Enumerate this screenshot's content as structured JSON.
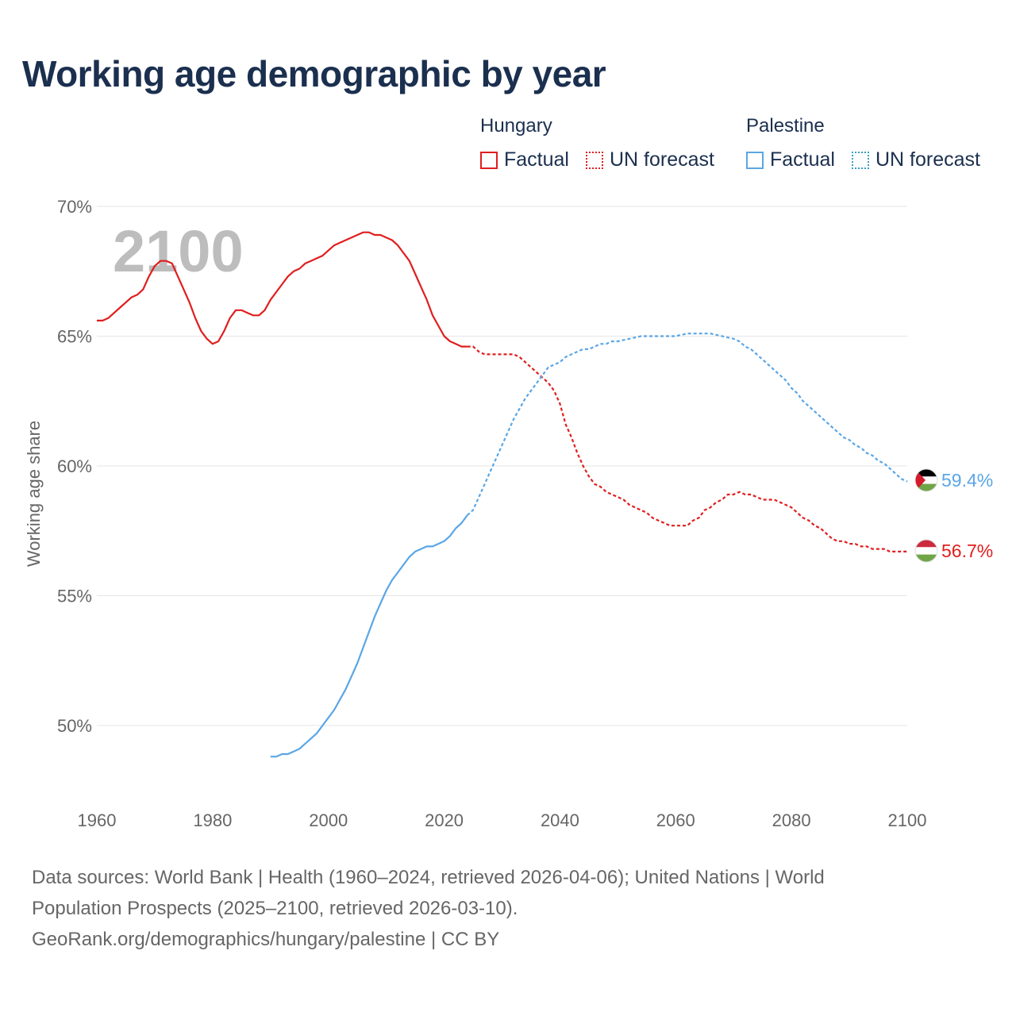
{
  "title": "Working age demographic by year",
  "legend": {
    "hungary": {
      "name": "Hungary",
      "factual": "Factual",
      "forecast": "UN forecast"
    },
    "palestine": {
      "name": "Palestine",
      "factual": "Factual",
      "forecast": "UN forecast"
    }
  },
  "colors": {
    "hungary": "#e01e1e",
    "palestine": "#5aa6e6",
    "grid": "#e6e6e6",
    "axis_text": "#666666",
    "title": "#1b2f4f"
  },
  "footer": {
    "line1": "Data sources: World Bank | Health (1960–2024, retrieved 2026-04-06); United Nations | World",
    "line2": "Population Prospects (2025–2100, retrieved 2026-03-10).",
    "line3": "GeoRank.org/demographics/hungary/palestine | CC BY"
  },
  "chart_data": {
    "type": "line",
    "title": "Working age demographic by year",
    "ylabel": "Working age share",
    "xlabel": "",
    "xlim": [
      1960,
      2100
    ],
    "ylim": [
      47.5,
      70
    ],
    "x_ticks": [
      1960,
      1980,
      2000,
      2020,
      2040,
      2060,
      2080,
      2100
    ],
    "x_tick_labels": [
      "1960",
      "1980",
      "2000",
      "2020",
      "2040",
      "2060",
      "2080",
      "2100"
    ],
    "y_ticks": [
      50,
      55,
      60,
      65,
      70
    ],
    "y_tick_labels": [
      "50%",
      "55%",
      "60%",
      "65%",
      "70%"
    ],
    "grid": true,
    "year_overlay": "2100",
    "series": [
      {
        "name": "Hungary",
        "color": "#e01e1e",
        "end_label": "56.7%",
        "flag": "hungary",
        "factual": {
          "x": [
            1960,
            1961,
            1962,
            1964,
            1966,
            1967,
            1968,
            1969,
            1970,
            1971,
            1972,
            1973,
            1974,
            1975,
            1976,
            1977,
            1978,
            1979,
            1980,
            1981,
            1982,
            1983,
            1984,
            1985,
            1986,
            1987,
            1988,
            1989,
            1990,
            1991,
            1992,
            1993,
            1994,
            1995,
            1996,
            1997,
            1998,
            1999,
            2000,
            2001,
            2002,
            2003,
            2004,
            2005,
            2006,
            2007,
            2008,
            2009,
            2010,
            2011,
            2012,
            2013,
            2014,
            2015,
            2016,
            2017,
            2018,
            2019,
            2020,
            2021,
            2022,
            2023,
            2024
          ],
          "y": [
            65.6,
            65.6,
            65.7,
            66.1,
            66.5,
            66.6,
            66.8,
            67.3,
            67.7,
            67.9,
            67.9,
            67.8,
            67.3,
            66.8,
            66.3,
            65.7,
            65.2,
            64.9,
            64.7,
            64.8,
            65.2,
            65.7,
            66.0,
            66.0,
            65.9,
            65.8,
            65.8,
            66.0,
            66.4,
            66.7,
            67.0,
            67.3,
            67.5,
            67.6,
            67.8,
            67.9,
            68.0,
            68.1,
            68.3,
            68.5,
            68.6,
            68.7,
            68.8,
            68.9,
            69.0,
            69.0,
            68.9,
            68.9,
            68.8,
            68.7,
            68.5,
            68.2,
            67.9,
            67.4,
            66.9,
            66.4,
            65.8,
            65.4,
            65.0,
            64.8,
            64.7,
            64.6,
            64.6
          ]
        },
        "forecast": {
          "x": [
            2024,
            2025,
            2026,
            2027,
            2028,
            2030,
            2032,
            2033,
            2034,
            2035,
            2036,
            2037,
            2038,
            2039,
            2040,
            2041,
            2042,
            2043,
            2044,
            2045,
            2046,
            2047,
            2048,
            2049,
            2050,
            2051,
            2052,
            2053,
            2054,
            2055,
            2056,
            2057,
            2058,
            2059,
            2060,
            2061,
            2062,
            2063,
            2064,
            2065,
            2066,
            2067,
            2068,
            2069,
            2070,
            2071,
            2072,
            2073,
            2074,
            2075,
            2076,
            2077,
            2078,
            2079,
            2080,
            2081,
            2082,
            2083,
            2084,
            2085,
            2086,
            2087,
            2088,
            2089,
            2090,
            2091,
            2092,
            2093,
            2094,
            2095,
            2096,
            2097,
            2098,
            2099,
            2100
          ],
          "y": [
            64.6,
            64.6,
            64.4,
            64.3,
            64.3,
            64.3,
            64.3,
            64.2,
            64.0,
            63.8,
            63.6,
            63.4,
            63.2,
            62.9,
            62.4,
            61.6,
            61.1,
            60.5,
            60.0,
            59.6,
            59.3,
            59.2,
            59.0,
            58.9,
            58.8,
            58.7,
            58.5,
            58.4,
            58.3,
            58.2,
            58.0,
            57.9,
            57.8,
            57.7,
            57.7,
            57.7,
            57.7,
            57.9,
            58.0,
            58.3,
            58.4,
            58.6,
            58.7,
            58.9,
            58.9,
            59.0,
            58.9,
            58.9,
            58.8,
            58.7,
            58.7,
            58.7,
            58.6,
            58.5,
            58.4,
            58.2,
            58.0,
            57.9,
            57.7,
            57.6,
            57.4,
            57.2,
            57.1,
            57.1,
            57.0,
            57.0,
            56.9,
            56.9,
            56.8,
            56.8,
            56.8,
            56.7,
            56.7,
            56.7,
            56.7
          ]
        }
      },
      {
        "name": "Palestine",
        "color": "#5aa6e6",
        "end_label": "59.4%",
        "flag": "palestine",
        "factual": {
          "x": [
            1990,
            1991,
            1992,
            1993,
            1994,
            1995,
            1996,
            1997,
            1998,
            1999,
            2000,
            2001,
            2002,
            2003,
            2004,
            2005,
            2006,
            2007,
            2008,
            2009,
            2010,
            2011,
            2012,
            2013,
            2014,
            2015,
            2016,
            2017,
            2018,
            2019,
            2020,
            2021,
            2022,
            2023,
            2024
          ],
          "y": [
            48.8,
            48.8,
            48.9,
            48.9,
            49.0,
            49.1,
            49.3,
            49.5,
            49.7,
            50.0,
            50.3,
            50.6,
            51.0,
            51.4,
            51.9,
            52.4,
            53.0,
            53.6,
            54.2,
            54.7,
            55.2,
            55.6,
            55.9,
            56.2,
            56.5,
            56.7,
            56.8,
            56.9,
            56.9,
            57.0,
            57.1,
            57.3,
            57.6,
            57.8,
            58.1
          ]
        },
        "forecast": {
          "x": [
            2024,
            2025,
            2026,
            2027,
            2028,
            2029,
            2030,
            2031,
            2032,
            2033,
            2034,
            2035,
            2036,
            2037,
            2038,
            2039,
            2040,
            2041,
            2042,
            2043,
            2044,
            2045,
            2046,
            2047,
            2048,
            2049,
            2050,
            2052,
            2054,
            2056,
            2058,
            2060,
            2062,
            2064,
            2066,
            2068,
            2070,
            2071,
            2072,
            2073,
            2074,
            2075,
            2076,
            2077,
            2078,
            2079,
            2080,
            2081,
            2082,
            2083,
            2084,
            2085,
            2086,
            2087,
            2088,
            2089,
            2090,
            2091,
            2092,
            2093,
            2094,
            2095,
            2096,
            2097,
            2098,
            2099,
            2100
          ],
          "y": [
            58.1,
            58.3,
            58.8,
            59.3,
            59.8,
            60.3,
            60.8,
            61.3,
            61.8,
            62.2,
            62.6,
            62.9,
            63.2,
            63.5,
            63.8,
            63.9,
            64.0,
            64.2,
            64.3,
            64.4,
            64.5,
            64.5,
            64.6,
            64.7,
            64.7,
            64.8,
            64.8,
            64.9,
            65.0,
            65.0,
            65.0,
            65.0,
            65.1,
            65.1,
            65.1,
            65.0,
            64.9,
            64.8,
            64.6,
            64.5,
            64.3,
            64.1,
            63.9,
            63.7,
            63.5,
            63.3,
            63.0,
            62.8,
            62.5,
            62.3,
            62.1,
            61.9,
            61.7,
            61.5,
            61.3,
            61.1,
            61.0,
            60.8,
            60.7,
            60.5,
            60.4,
            60.2,
            60.1,
            59.9,
            59.7,
            59.5,
            59.4
          ]
        }
      }
    ]
  }
}
